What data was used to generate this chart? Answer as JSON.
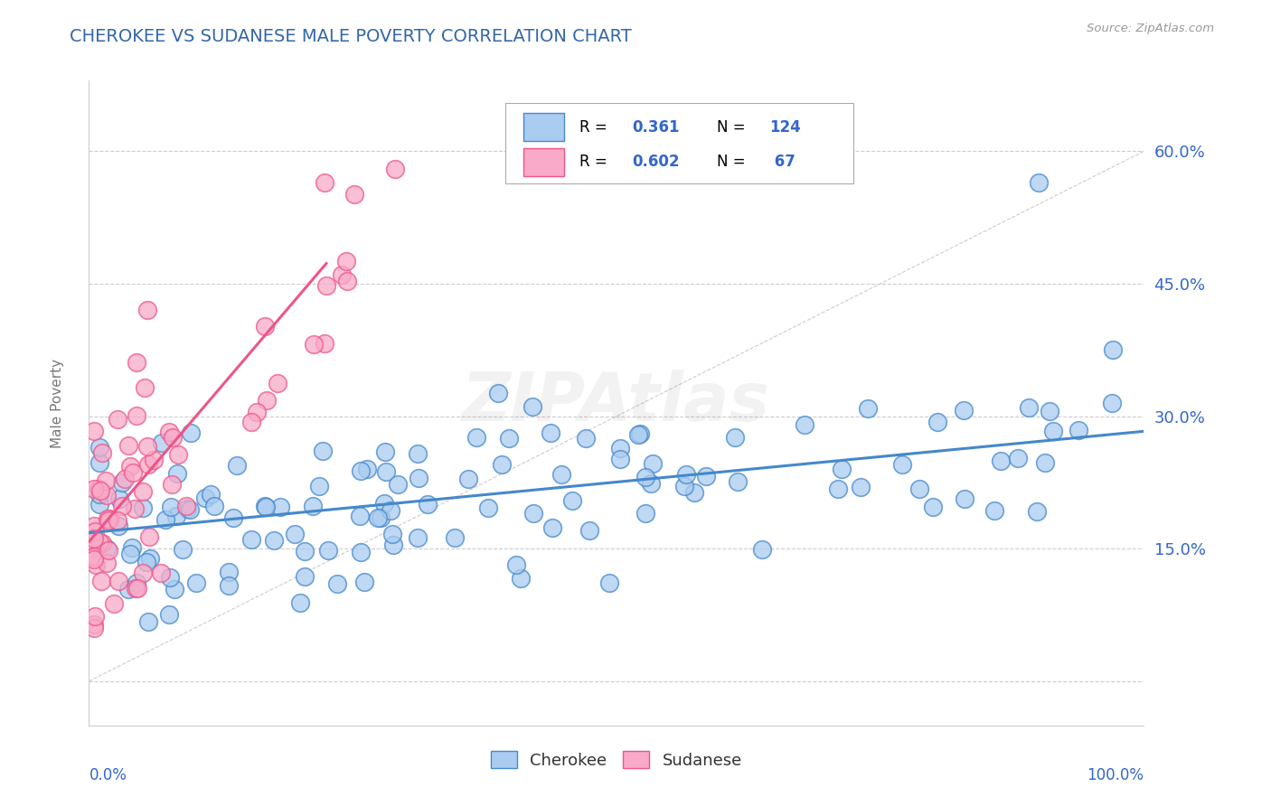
{
  "title": "CHEROKEE VS SUDANESE MALE POVERTY CORRELATION CHART",
  "source": "Source: ZipAtlas.com",
  "ylabel": "Male Poverty",
  "yticks": [
    0.0,
    0.15,
    0.3,
    0.45,
    0.6
  ],
  "ytick_labels": [
    "",
    "15.0%",
    "30.0%",
    "45.0%",
    "60.0%"
  ],
  "xlim": [
    0.0,
    1.0
  ],
  "ylim": [
    -0.05,
    0.68
  ],
  "cherokee_R": 0.361,
  "cherokee_N": 124,
  "sudanese_R": 0.602,
  "sudanese_N": 67,
  "cherokee_color": "#aaccf0",
  "sudanese_color": "#f8aac8",
  "cherokee_line_color": "#4488cc",
  "sudanese_line_color": "#ee5588",
  "title_color": "#3366aa",
  "source_color": "#999999",
  "legend_color": "#3366cc",
  "background_color": "#ffffff",
  "grid_color": "#cccccc",
  "cherokee_slope": 0.115,
  "cherokee_intercept": 0.168,
  "sudanese_slope": 1.4,
  "sudanese_intercept": 0.158,
  "sudanese_line_xmax": 0.225
}
